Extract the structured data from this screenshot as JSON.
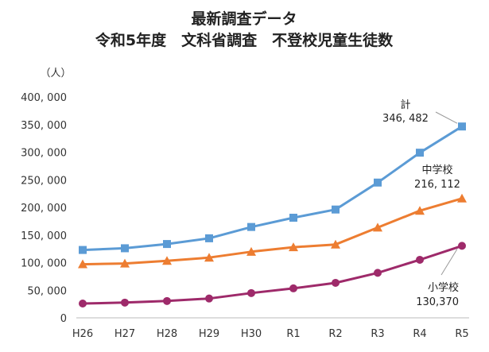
{
  "chart_data": {
    "type": "line",
    "title": "最新調査データ",
    "subtitle": "令和5年度　文科省調査　不登校児童生徒数",
    "y_unit": "（人）",
    "categories": [
      "H26",
      "H27",
      "H28",
      "H29",
      "H30",
      "R1",
      "R2",
      "R3",
      "R4",
      "R5"
    ],
    "ylim": [
      0,
      400000
    ],
    "yticks": [
      0,
      50000,
      100000,
      150000,
      200000,
      250000,
      300000,
      350000,
      400000
    ],
    "ytick_labels": [
      "0",
      "50, 000",
      "100, 000",
      "150, 000",
      "200, 000",
      "250, 000",
      "300, 000",
      "350, 000",
      "400, 000"
    ],
    "grid": false,
    "series": [
      {
        "name": "計",
        "marker": "square",
        "color": "#5b9bd5",
        "values": [
          122902,
          125991,
          133683,
          144031,
          164528,
          181272,
          196127,
          244940,
          299048,
          346482
        ]
      },
      {
        "name": "中学校",
        "marker": "triangle",
        "color": "#ed7d31",
        "values": [
          97033,
          98408,
          103235,
          108999,
          119687,
          127922,
          132777,
          163442,
          193936,
          216112
        ]
      },
      {
        "name": "小学校",
        "marker": "circle",
        "color": "#9e2a6a",
        "values": [
          25864,
          27583,
          30448,
          35032,
          44841,
          53350,
          63350,
          81498,
          105112,
          130370
        ]
      }
    ],
    "annotations": [
      {
        "series": "計",
        "label": "計",
        "value_label": "346, 482"
      },
      {
        "series": "中学校",
        "label": "中学校",
        "value_label": "216, 112"
      },
      {
        "series": "小学校",
        "label": "小学校",
        "value_label": "130,370"
      }
    ]
  }
}
